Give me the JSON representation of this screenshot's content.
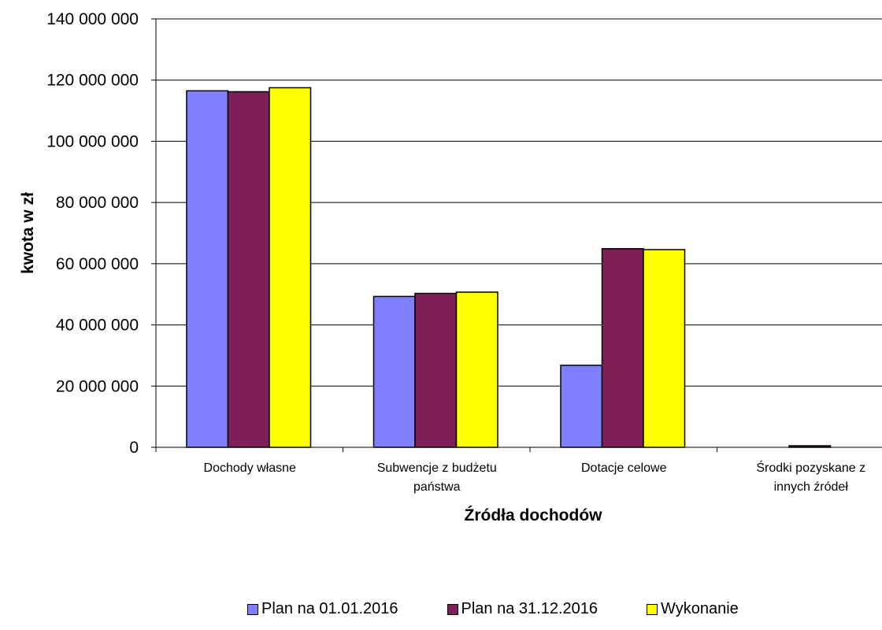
{
  "chart_data": {
    "type": "bar",
    "title": "",
    "xlabel": "Źródła dochodów",
    "ylabel": "kwota w zł",
    "ylim": [
      0,
      140000000
    ],
    "yticks": [
      0,
      20000000,
      40000000,
      60000000,
      80000000,
      100000000,
      120000000,
      140000000
    ],
    "ytick_labels": [
      "0",
      "20 000 000",
      "40 000 000",
      "60 000 000",
      "80 000 000",
      "100 000 000",
      "120 000 000",
      "140 000 000"
    ],
    "grid": true,
    "legend_position": "bottom",
    "categories": [
      [
        "Dochody własne"
      ],
      [
        "Subwencje z budżetu",
        "państwa"
      ],
      [
        "Dotacje  celowe"
      ],
      [
        "Środki pozyskane z",
        "innych  źródeł"
      ]
    ],
    "series": [
      {
        "name": "Plan na 01.01.2016",
        "color": "#8080ff",
        "values": [
          116500000,
          49300000,
          26800000,
          0
        ]
      },
      {
        "name": "Plan na 31.12.2016",
        "color": "#7f1f5a",
        "values": [
          116200000,
          50300000,
          64900000,
          500000
        ]
      },
      {
        "name": "Wykonanie",
        "color": "#ffff00",
        "values": [
          117500000,
          50700000,
          64600000,
          0
        ]
      }
    ]
  }
}
